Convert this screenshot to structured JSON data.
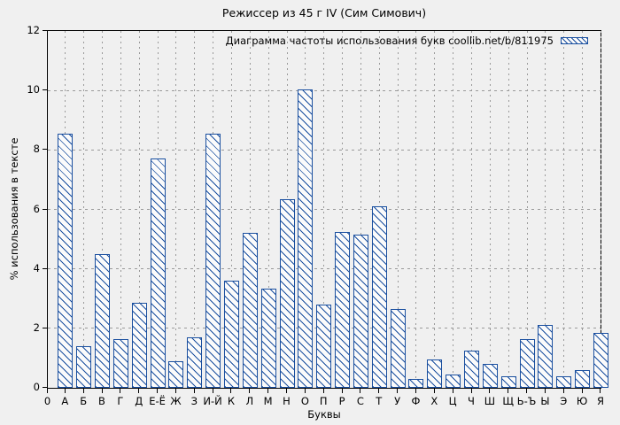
{
  "colors": {
    "bar_blue": "#1a4f9f",
    "background": "#f0f0f0",
    "grid": "#9a9a9a",
    "text": "#000000"
  },
  "chart_data": {
    "type": "bar",
    "title": "Режиссер из 45 г IV (Сим Симович)",
    "legend": "Диаграмма частоты использования букв coollib.net/b/811975",
    "xlabel": "Буквы",
    "ylabel": "% использования в тексте",
    "origin_label": "0",
    "categories": [
      "А",
      "Б",
      "В",
      "Г",
      "Д",
      "Е-Ё",
      "Ж",
      "З",
      "И-Й",
      "К",
      "Л",
      "М",
      "Н",
      "О",
      "П",
      "Р",
      "С",
      "Т",
      "У",
      "Ф",
      "Х",
      "Ц",
      "Ч",
      "Ш",
      "Щ",
      "Ь-Ъ",
      "Ы",
      "Э",
      "Ю",
      "Я"
    ],
    "values": [
      8.55,
      1.4,
      4.5,
      1.65,
      2.85,
      7.7,
      0.9,
      1.7,
      8.55,
      3.6,
      5.2,
      3.35,
      6.35,
      10.05,
      2.8,
      5.25,
      5.15,
      6.1,
      2.65,
      0.3,
      0.95,
      0.45,
      1.25,
      0.8,
      0.4,
      1.65,
      2.1,
      0.4,
      0.6,
      1.85
    ],
    "ylim": [
      0,
      12
    ],
    "yticks": [
      0,
      2,
      4,
      6,
      8,
      10,
      12
    ],
    "grid": "dashed",
    "legend_position": "top-right-inside"
  }
}
